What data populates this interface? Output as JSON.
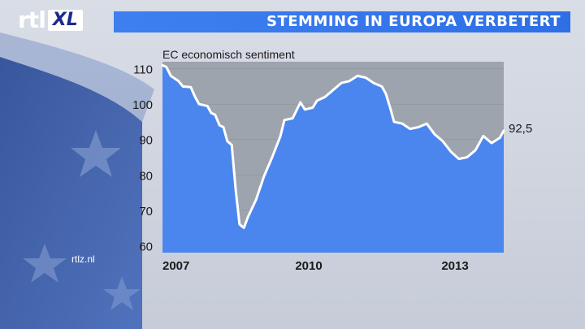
{
  "brand": {
    "logo_main": "rtl",
    "logo_sub": "XL",
    "website": "rtlz.nl"
  },
  "headline": "STEMMING IN EUROPA VERBETERT",
  "colors": {
    "title_band": "#3a7bef",
    "area_fill": "#4a86ee",
    "plot_bg": "#9ea4ae",
    "line": "#ffffff"
  },
  "chart_data": {
    "type": "area",
    "title": "EC economisch sentiment",
    "xlabel": "",
    "ylabel": "",
    "x_range": [
      2007.0,
      2013.3
    ],
    "ylim": [
      58,
      112
    ],
    "yticks": [
      60,
      70,
      80,
      90,
      100,
      110
    ],
    "xticks": [
      {
        "value": 2007,
        "label": "2007"
      },
      {
        "value": 2010,
        "label": "2010"
      },
      {
        "value": 2013,
        "label": "2013"
      }
    ],
    "grid": true,
    "end_label": "92,5",
    "series": [
      {
        "points": [
          [
            2007.0,
            111.0
          ],
          [
            2007.08,
            110.5
          ],
          [
            2007.17,
            108.0
          ],
          [
            2007.33,
            106.5
          ],
          [
            2007.42,
            105.0
          ],
          [
            2007.58,
            104.8
          ],
          [
            2007.67,
            102.0
          ],
          [
            2007.75,
            100.0
          ],
          [
            2007.92,
            99.5
          ],
          [
            2008.0,
            97.5
          ],
          [
            2008.08,
            97.0
          ],
          [
            2008.17,
            94.0
          ],
          [
            2008.25,
            93.5
          ],
          [
            2008.33,
            89.5
          ],
          [
            2008.42,
            88.5
          ],
          [
            2008.5,
            76.0
          ],
          [
            2008.58,
            66.0
          ],
          [
            2008.67,
            65.0
          ],
          [
            2008.75,
            68.0
          ],
          [
            2008.92,
            73.0
          ],
          [
            2009.08,
            79.5
          ],
          [
            2009.25,
            85.0
          ],
          [
            2009.42,
            91.0
          ],
          [
            2009.5,
            95.5
          ],
          [
            2009.67,
            96.0
          ],
          [
            2009.83,
            100.5
          ],
          [
            2009.92,
            98.5
          ],
          [
            2010.08,
            99.0
          ],
          [
            2010.17,
            101.0
          ],
          [
            2010.33,
            102.0
          ],
          [
            2010.5,
            104.0
          ],
          [
            2010.67,
            106.0
          ],
          [
            2010.83,
            106.5
          ],
          [
            2011.0,
            108.0
          ],
          [
            2011.17,
            107.5
          ],
          [
            2011.33,
            106.0
          ],
          [
            2011.5,
            105.0
          ],
          [
            2011.58,
            103.0
          ],
          [
            2011.67,
            99.0
          ],
          [
            2011.75,
            95.0
          ],
          [
            2011.92,
            94.5
          ],
          [
            2012.08,
            93.0
          ],
          [
            2012.25,
            93.5
          ],
          [
            2012.42,
            94.5
          ],
          [
            2012.58,
            91.5
          ],
          [
            2012.75,
            89.5
          ],
          [
            2012.92,
            86.5
          ],
          [
            2013.08,
            84.5
          ],
          [
            2013.25,
            85.0
          ],
          [
            2013.42,
            87.0
          ],
          [
            2013.58,
            91.0
          ],
          [
            2013.75,
            89.0
          ],
          [
            2013.92,
            90.5
          ],
          [
            2014.0,
            92.5
          ]
        ]
      }
    ]
  }
}
